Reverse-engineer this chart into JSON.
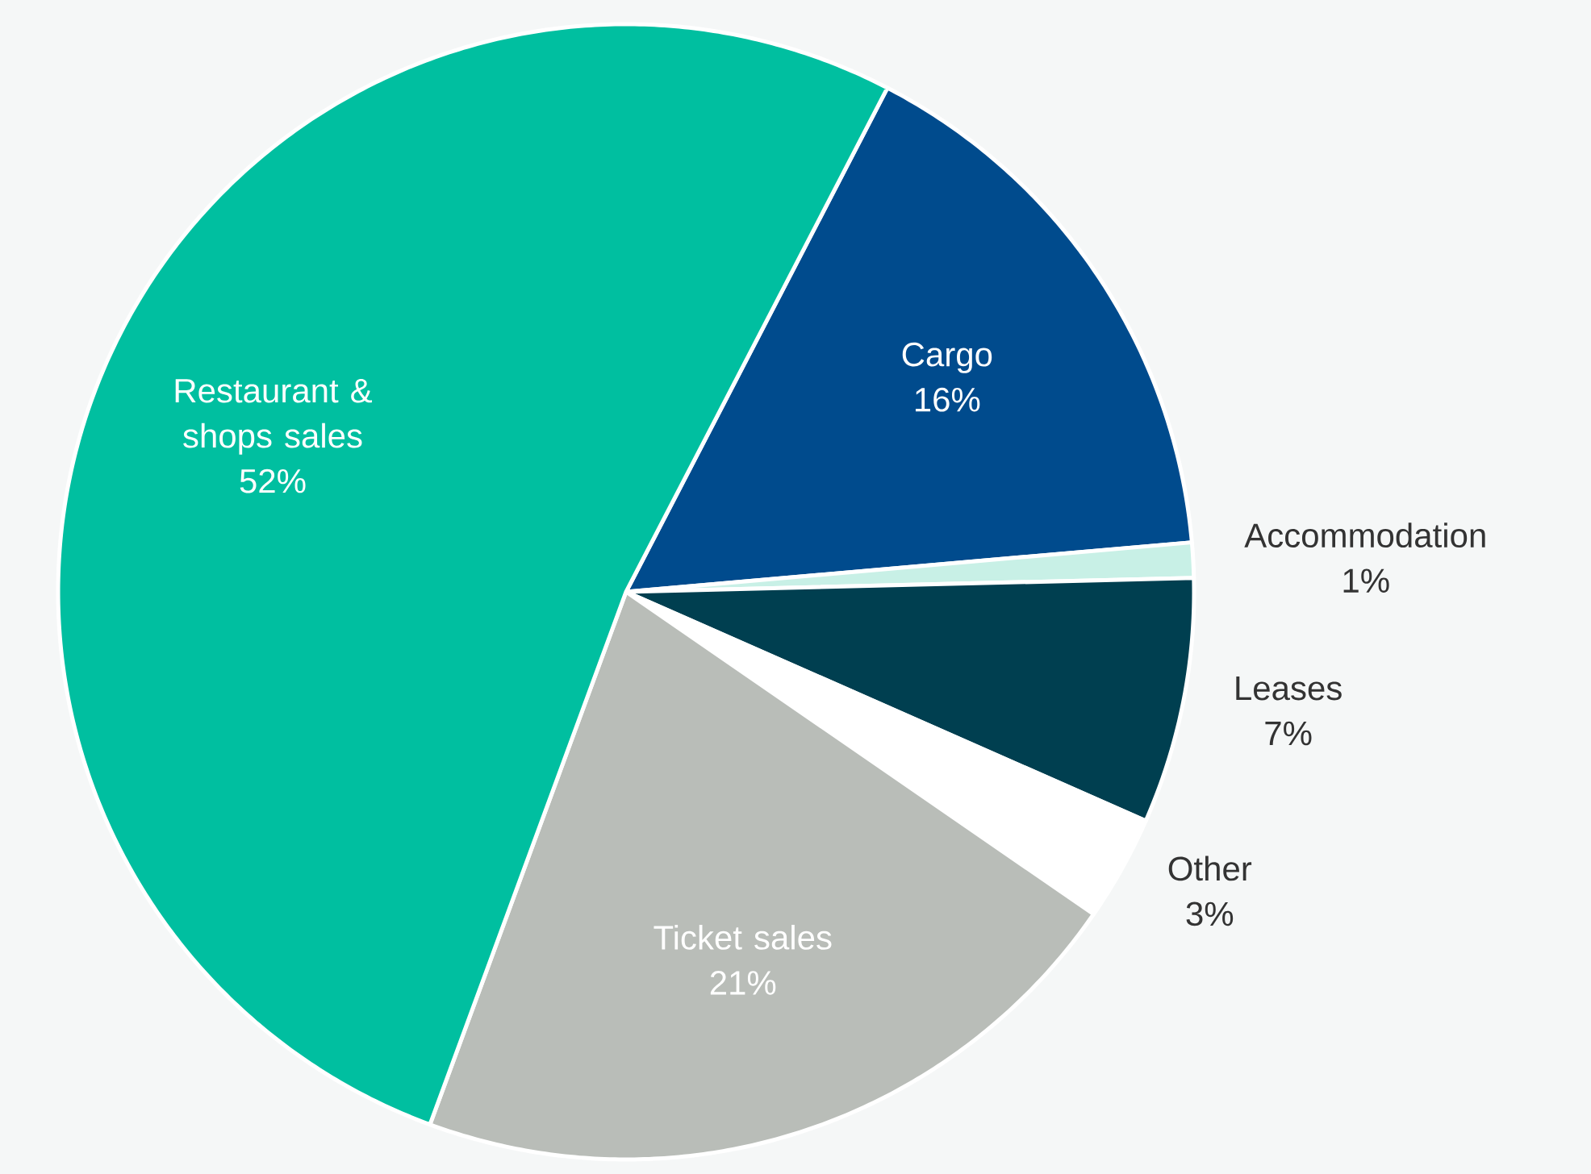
{
  "chart_data": {
    "type": "pie",
    "categories": [
      "Cargo",
      "Accommodation",
      "Leases",
      "Other",
      "Ticket sales",
      "Restaurant & shops sales"
    ],
    "values": [
      16,
      1,
      7,
      3,
      21,
      52
    ],
    "value_labels": [
      "16%",
      "1%",
      "7%",
      "3%",
      "21%",
      "52%"
    ],
    "colors": [
      "#004b8d",
      "#c8f0e6",
      "#003f50",
      "#ffffff",
      "#b9bdb8",
      "#00bfa0"
    ]
  }
}
